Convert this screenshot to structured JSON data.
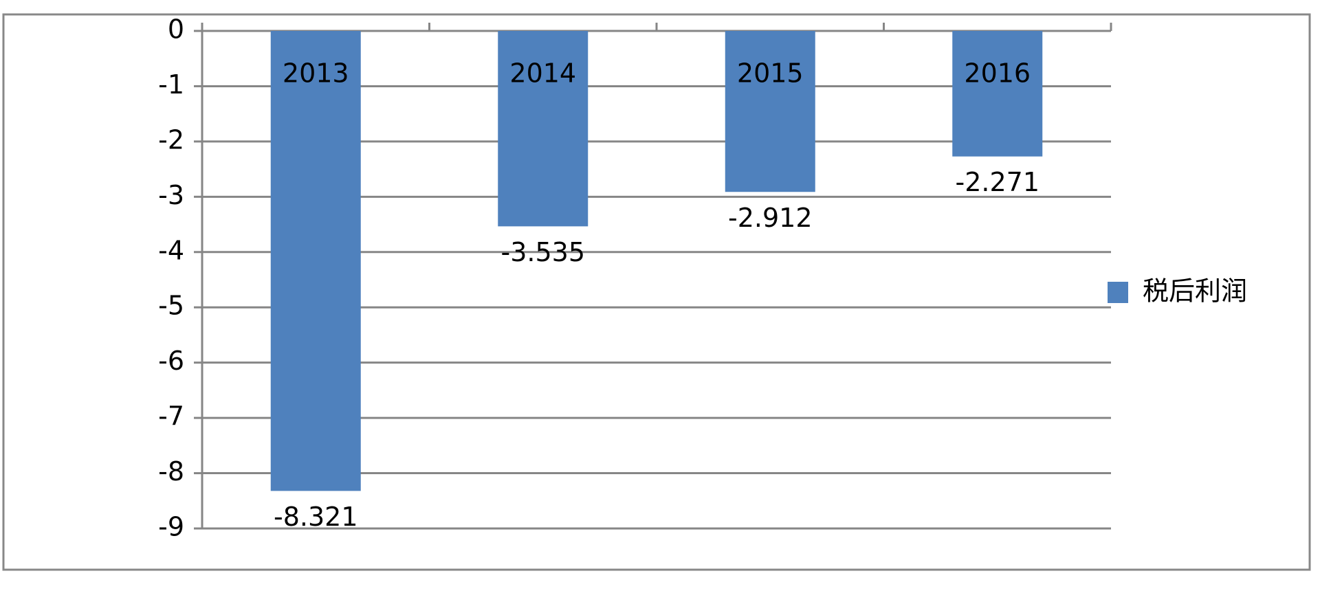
{
  "chart_data": {
    "type": "bar",
    "categories": [
      "2013",
      "2014",
      "2015",
      "2016"
    ],
    "series": [
      {
        "name": "税后利润",
        "color": "#4f81bd",
        "values": [
          -8.321,
          -3.535,
          -2.912,
          -2.271
        ]
      }
    ],
    "ylim": [
      -9,
      0
    ],
    "yticks": [
      0,
      -1,
      -2,
      -3,
      -4,
      -5,
      -6,
      -7,
      -8,
      -9
    ],
    "grid": true,
    "legend": "right"
  }
}
